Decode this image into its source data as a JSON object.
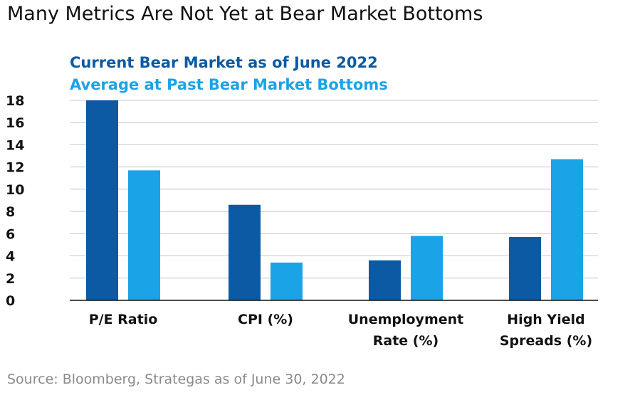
{
  "title": "Many Metrics Are Not Yet at Bear Market Bottoms",
  "source": "Source: Bloomberg, Strategas as of June 30, 2022",
  "colors": {
    "current": "#0b5aa3",
    "average": "#1aa3e6",
    "grid": "#c8c8c8"
  },
  "chart_data": {
    "type": "bar",
    "categories": [
      [
        "P/E Ratio"
      ],
      [
        "CPI (%)"
      ],
      [
        "Unemployment",
        "Rate (%)"
      ],
      [
        "High Yield",
        "Spreads (%)"
      ]
    ],
    "series": [
      {
        "name": "Current Bear Market as of June 2022",
        "values": [
          18,
          8.6,
          3.6,
          5.7
        ]
      },
      {
        "name": "Average at Past Bear Market Bottoms",
        "values": [
          11.7,
          3.4,
          5.8,
          12.7
        ]
      }
    ],
    "ylim": [
      0,
      18
    ],
    "yticks": [
      "0",
      "2",
      "4",
      "6",
      "8",
      "10",
      "12",
      "14",
      "16",
      "18"
    ],
    "grid": true,
    "legend": "top-left"
  }
}
